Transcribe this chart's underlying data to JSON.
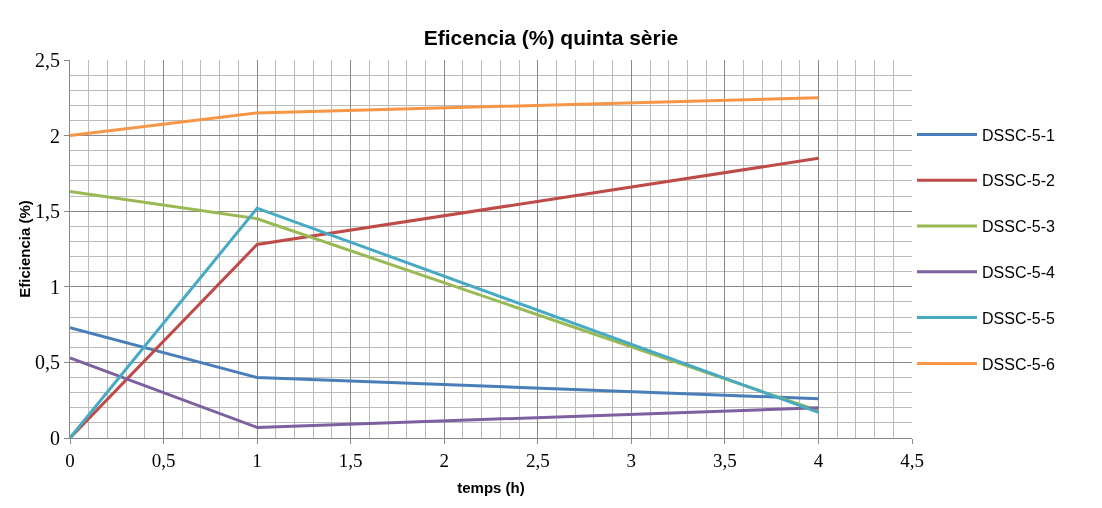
{
  "chart_data": {
    "type": "line",
    "title": "Eficencia (%) quinta sèrie",
    "xlabel": "temps (h)",
    "ylabel": "Eficiencia (%)",
    "x": [
      0,
      1,
      4
    ],
    "series": [
      {
        "name": "DSSC-5-1",
        "color": "#4a7ebb",
        "values": [
          0.73,
          0.4,
          0.26
        ]
      },
      {
        "name": "DSSC-5-2",
        "color": "#be4b48",
        "values": [
          0,
          1.28,
          1.85
        ]
      },
      {
        "name": "DSSC-5-3",
        "color": "#98b954",
        "values": [
          1.63,
          1.45,
          0.18
        ]
      },
      {
        "name": "DSSC-5-4",
        "color": "#7d60a0",
        "values": [
          0.53,
          0.07,
          0.2
        ]
      },
      {
        "name": "DSSC-5-5",
        "color": "#46aac5",
        "values": [
          0,
          1.52,
          0.17
        ]
      },
      {
        "name": "DSSC-5-6",
        "color": "#f79646",
        "values": [
          2.0,
          2.15,
          2.25
        ]
      }
    ],
    "xlim": [
      0,
      4.5
    ],
    "xticks": [
      0,
      {
        "value": 0.5,
        "label": "0,5"
      },
      1,
      {
        "value": 1.5,
        "label": "1,5"
      },
      2,
      {
        "value": 2.5,
        "label": "2,5"
      },
      3,
      {
        "value": 3.5,
        "label": "3,5"
      },
      4,
      {
        "value": 4.5,
        "label": "4,5"
      }
    ],
    "ylim": [
      0,
      2.5
    ],
    "yticks": [
      0,
      {
        "value": 0.5,
        "label": "0,5"
      },
      1,
      {
        "value": 1.5,
        "label": "1,5"
      },
      2,
      {
        "value": 2.5,
        "label": "2,5"
      }
    ],
    "grid": true,
    "legend": "right",
    "marker": "none",
    "line_style": "solid"
  }
}
